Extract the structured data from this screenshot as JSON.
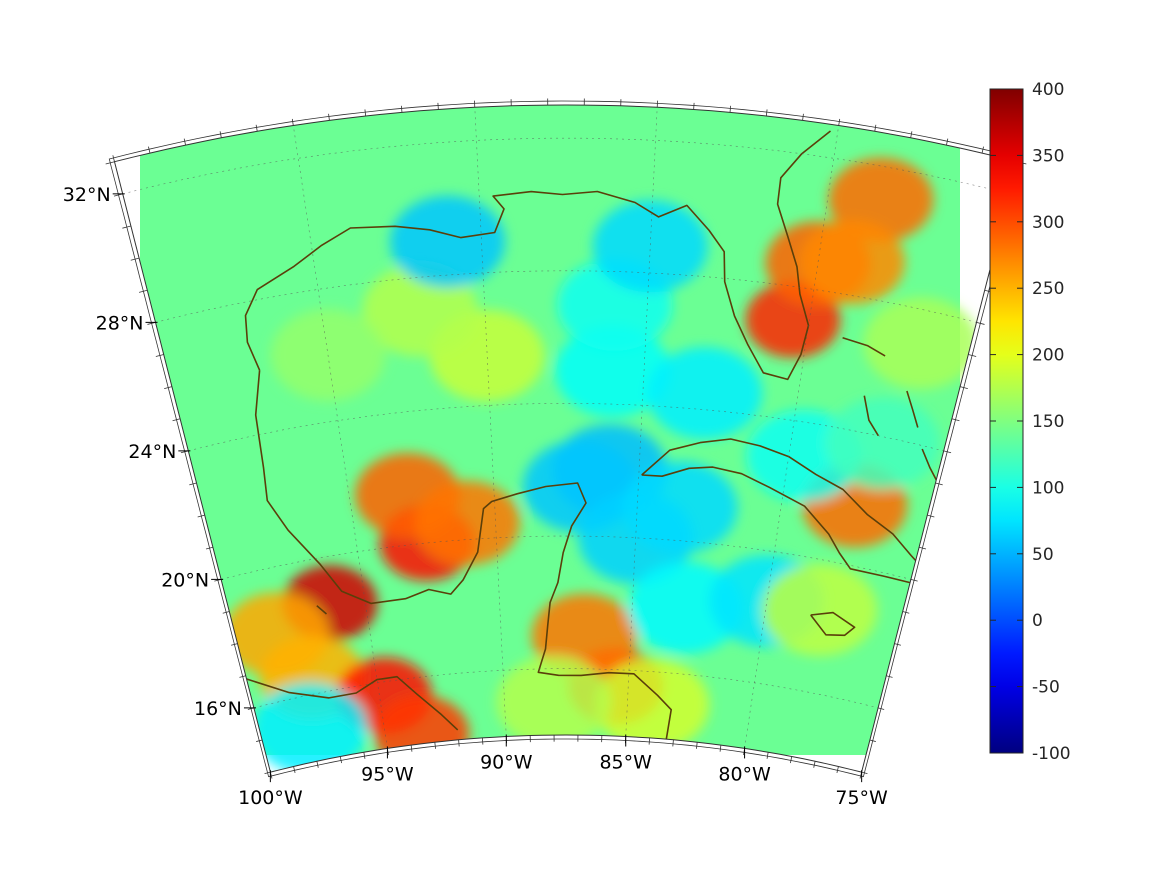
{
  "chart_data": {
    "type": "heatmap",
    "projection": "conic, lon 100°W–75°W, lat 14°N–33°N",
    "lon_range": [
      -100,
      -75
    ],
    "lat_range": [
      14,
      33
    ],
    "lat_ticks": [
      {
        "value": 32,
        "label": "32°N"
      },
      {
        "value": 28,
        "label": "28°N"
      },
      {
        "value": 24,
        "label": "24°N"
      },
      {
        "value": 20,
        "label": "20°N"
      },
      {
        "value": 16,
        "label": "16°N"
      }
    ],
    "lon_ticks": [
      {
        "value": -100,
        "label": "100°W"
      },
      {
        "value": -95,
        "label": "95°W"
      },
      {
        "value": -90,
        "label": "90°W"
      },
      {
        "value": -85,
        "label": "85°W"
      },
      {
        "value": -80,
        "label": "80°W"
      },
      {
        "value": -75,
        "label": "75°W"
      }
    ],
    "colorbar": {
      "colormap": "jet",
      "range": [
        -100,
        400
      ],
      "ticks": [
        400,
        350,
        300,
        250,
        200,
        150,
        100,
        50,
        0,
        -50,
        -100
      ],
      "tick_labels": [
        "400",
        "350",
        "300",
        "250",
        "200",
        "150",
        "100",
        "50",
        "0",
        "-50",
        "-100"
      ]
    },
    "field_background_value": 140,
    "features": [
      {
        "lon": -92.5,
        "lat": 20.0,
        "value": 330
      },
      {
        "lon": -93.0,
        "lat": 21.5,
        "value": 290
      },
      {
        "lon": -91.0,
        "lat": 20.5,
        "value": 280
      },
      {
        "lon": -96.3,
        "lat": 18.6,
        "value": 360
      },
      {
        "lon": -98.5,
        "lat": 18.0,
        "value": 255
      },
      {
        "lon": -97.5,
        "lat": 16.5,
        "value": 250
      },
      {
        "lon": -80.5,
        "lat": 27.0,
        "value": 320
      },
      {
        "lon": -80.0,
        "lat": 28.8,
        "value": 290
      },
      {
        "lon": -78.5,
        "lat": 31.0,
        "value": 285
      },
      {
        "lon": -79.0,
        "lat": 29.0,
        "value": 270
      },
      {
        "lon": -77.5,
        "lat": 21.8,
        "value": 285
      },
      {
        "lon": -85.5,
        "lat": 15.5,
        "value": 310
      },
      {
        "lon": -86.8,
        "lat": 17.0,
        "value": 280
      },
      {
        "lon": -94.8,
        "lat": 15.6,
        "value": 330
      },
      {
        "lon": -93.5,
        "lat": 14.3,
        "value": 310
      },
      {
        "lon": -90.0,
        "lat": 25.5,
        "value": 185
      },
      {
        "lon": -92.0,
        "lat": 27.0,
        "value": 175
      },
      {
        "lon": -86.0,
        "lat": 22.0,
        "value": 55
      },
      {
        "lon": -87.0,
        "lat": 21.5,
        "value": 60
      },
      {
        "lon": -85.0,
        "lat": 20.0,
        "value": 65
      },
      {
        "lon": -83.5,
        "lat": 21.0,
        "value": 70
      },
      {
        "lon": -86.0,
        "lat": 25.0,
        "value": 90
      },
      {
        "lon": -86.0,
        "lat": 27.0,
        "value": 95
      },
      {
        "lon": -83.0,
        "lat": 18.0,
        "value": 85
      },
      {
        "lon": -80.0,
        "lat": 18.5,
        "value": 75
      },
      {
        "lon": -98.0,
        "lat": 15.0,
        "value": 80
      },
      {
        "lon": -91.0,
        "lat": 29.0,
        "value": 60
      },
      {
        "lon": -85.0,
        "lat": 28.8,
        "value": 70
      },
      {
        "lon": -83.0,
        "lat": 24.5,
        "value": 80
      },
      {
        "lon": -79.5,
        "lat": 23.0,
        "value": 95
      },
      {
        "lon": -76.5,
        "lat": 27.0,
        "value": 170
      },
      {
        "lon": -78.0,
        "lat": 18.5,
        "value": 180
      },
      {
        "lon": -84.0,
        "lat": 15.0,
        "value": 190
      },
      {
        "lon": -88.0,
        "lat": 15.0,
        "value": 175
      },
      {
        "lon": -95.0,
        "lat": 26.0,
        "value": 160
      },
      {
        "lon": -77.0,
        "lat": 23.8,
        "value": 120
      }
    ],
    "coastline_color": "#5a3f0a"
  }
}
